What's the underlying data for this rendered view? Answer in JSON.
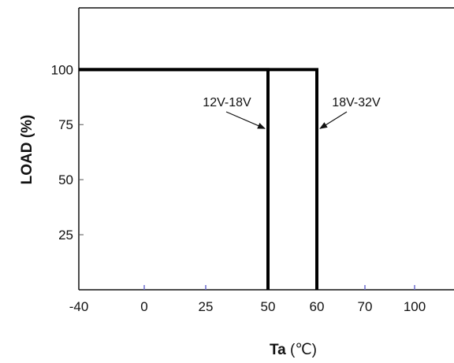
{
  "chart_data": {
    "type": "line",
    "title": "",
    "xlabel": "Ta",
    "xlabel_unit": "(℃)",
    "ylabel": "LOAD (%)",
    "x_tick_labels": [
      "-40",
      "0",
      "25",
      "50",
      "60",
      "70",
      "100"
    ],
    "y_tick_labels": [
      "25",
      "50",
      "75",
      "100"
    ],
    "y_ticks": [
      25,
      50,
      75,
      100
    ],
    "ylim": [
      0,
      128
    ],
    "grid": false,
    "series": [
      {
        "name": "12V-18V",
        "x": [
          "-40",
          "50",
          "50"
        ],
        "y": [
          100,
          100,
          0
        ]
      },
      {
        "name": "18V-32V",
        "x": [
          "-40",
          "60",
          "60"
        ],
        "y": [
          100,
          100,
          0
        ]
      }
    ],
    "annotations": [
      {
        "text": "12V-18V",
        "points_to": {
          "x": "50",
          "y": 75
        }
      },
      {
        "text": "18V-32V",
        "points_to": {
          "x": "60",
          "y": 75
        }
      }
    ]
  }
}
